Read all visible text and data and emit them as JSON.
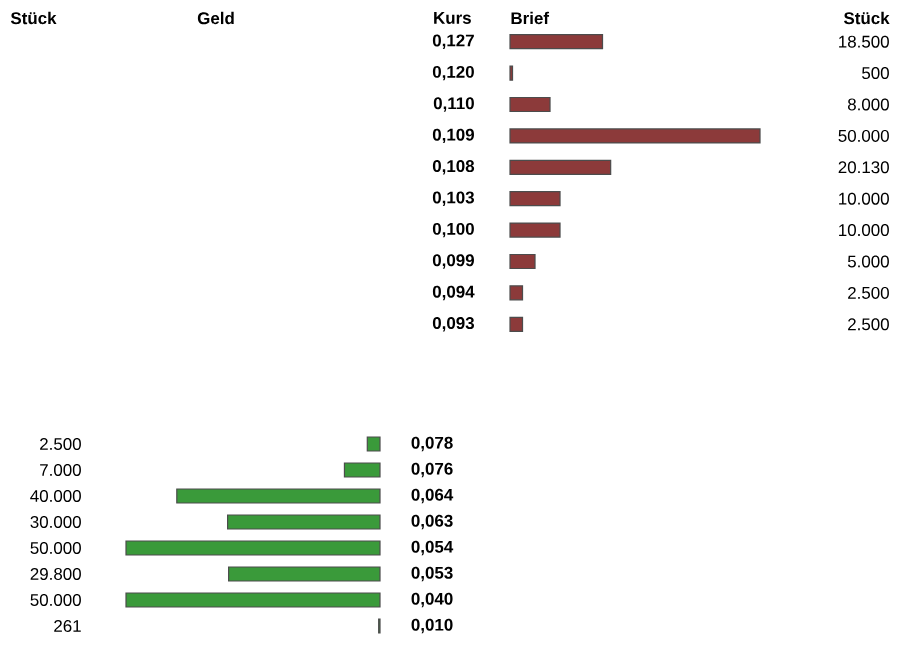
{
  "chart_data": [
    {
      "type": "bar",
      "orientation": "horizontal",
      "xlabel": "Brief",
      "ylabel": "Kurs",
      "annotations": [
        "Stück"
      ],
      "categories": [
        "0,127",
        "0,120",
        "0,110",
        "0,109",
        "0,108",
        "0,103",
        "0,100",
        "0,099",
        "0,094",
        "0,093"
      ],
      "values": [
        18500,
        500,
        8000,
        50000,
        20130,
        10000,
        10000,
        5000,
        2500,
        2500
      ],
      "value_labels": [
        "18.500",
        "500",
        "8.000",
        "50.000",
        "20.130",
        "10.000",
        "10.000",
        "5.000",
        "2.500",
        "2.500"
      ],
      "color": "#8c3a3a",
      "xlim": [
        0,
        50000
      ],
      "tick_labels": "y"
    },
    {
      "type": "bar",
      "orientation": "horizontal",
      "xlabel": "Geld",
      "annotations": [
        "Stück"
      ],
      "categories": [
        "0,078",
        "0,076",
        "0,064",
        "0,063",
        "0,054",
        "0,053",
        "0,040",
        "0,010"
      ],
      "values": [
        2500,
        7000,
        40000,
        30000,
        50000,
        29800,
        50000,
        261
      ],
      "value_labels": [
        "2.500",
        "7.000",
        "40.000",
        "30.000",
        "50.000",
        "29.800",
        "50.000",
        "261"
      ],
      "color": "#3a9a3a",
      "xlim": [
        50000,
        0
      ],
      "tick_labels": "y"
    }
  ]
}
